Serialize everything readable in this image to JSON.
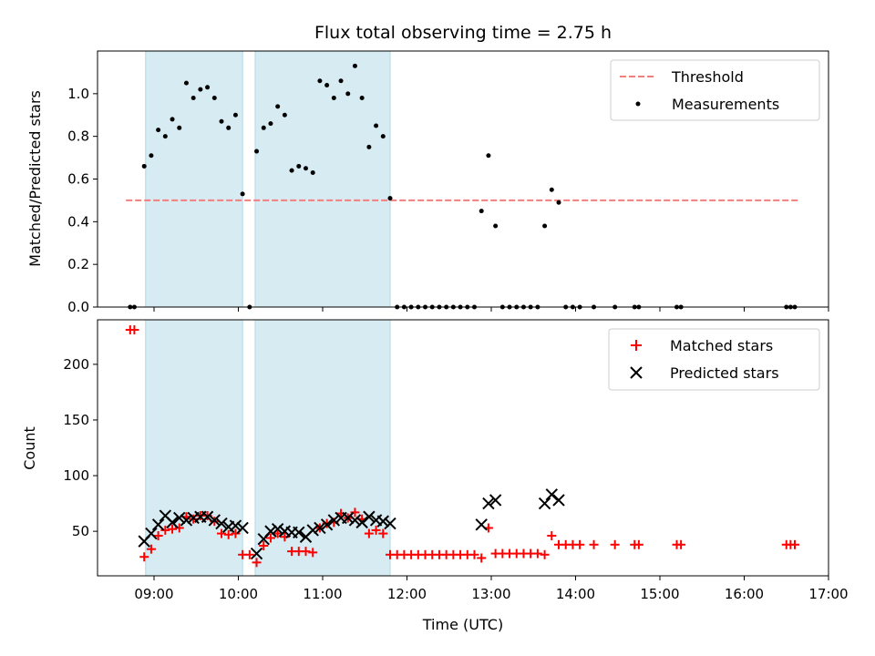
{
  "chart_data": [
    {
      "type": "scatter",
      "title": "Flux total observing time = 2.75 h",
      "xlabel": "",
      "ylabel": "Matched/Predicted stars",
      "xlim": [
        "08:25",
        "17:00"
      ],
      "ylim": [
        0,
        1.2
      ],
      "yticks": [
        0.0,
        0.2,
        0.4,
        0.6,
        0.8,
        1.0
      ],
      "grid": false,
      "legend_position": "top-right",
      "shaded_intervals": [
        [
          "08:54",
          "10:03"
        ],
        [
          "10:12",
          "11:48"
        ]
      ],
      "shade_color": "#add8e6",
      "threshold": {
        "name": "Threshold",
        "y": 0.5,
        "x_range": [
          "08:40",
          "16:40"
        ],
        "color": "#f08080",
        "style": "dashed"
      },
      "series": [
        {
          "name": "Measurements",
          "color": "#000000",
          "marker": "dot",
          "points": [
            [
              "08:43",
              0.0
            ],
            [
              "08:46",
              0.0
            ],
            [
              "08:53",
              0.66
            ],
            [
              "08:58",
              0.71
            ],
            [
              "09:03",
              0.83
            ],
            [
              "09:08",
              0.8
            ],
            [
              "09:13",
              0.88
            ],
            [
              "09:18",
              0.84
            ],
            [
              "09:23",
              1.05
            ],
            [
              "09:28",
              0.98
            ],
            [
              "09:33",
              1.02
            ],
            [
              "09:38",
              1.03
            ],
            [
              "09:43",
              0.98
            ],
            [
              "09:48",
              0.87
            ],
            [
              "09:53",
              0.84
            ],
            [
              "09:58",
              0.9
            ],
            [
              "10:03",
              0.53
            ],
            [
              "10:08",
              0.0
            ],
            [
              "10:13",
              0.73
            ],
            [
              "10:18",
              0.84
            ],
            [
              "10:23",
              0.86
            ],
            [
              "10:28",
              0.94
            ],
            [
              "10:33",
              0.9
            ],
            [
              "10:38",
              0.64
            ],
            [
              "10:43",
              0.66
            ],
            [
              "10:48",
              0.65
            ],
            [
              "10:53",
              0.63
            ],
            [
              "10:58",
              1.06
            ],
            [
              "11:03",
              1.04
            ],
            [
              "11:08",
              0.98
            ],
            [
              "11:13",
              1.06
            ],
            [
              "11:18",
              1.0
            ],
            [
              "11:23",
              1.13
            ],
            [
              "11:28",
              0.98
            ],
            [
              "11:33",
              0.75
            ],
            [
              "11:38",
              0.85
            ],
            [
              "11:43",
              0.8
            ],
            [
              "11:48",
              0.51
            ],
            [
              "11:53",
              0.0
            ],
            [
              "11:58",
              0.0
            ],
            [
              "12:03",
              0.0
            ],
            [
              "12:08",
              0.0
            ],
            [
              "12:13",
              0.0
            ],
            [
              "12:18",
              0.0
            ],
            [
              "12:23",
              0.0
            ],
            [
              "12:28",
              0.0
            ],
            [
              "12:33",
              0.0
            ],
            [
              "12:38",
              0.0
            ],
            [
              "12:43",
              0.0
            ],
            [
              "12:48",
              0.0
            ],
            [
              "12:53",
              0.45
            ],
            [
              "12:58",
              0.71
            ],
            [
              "13:03",
              0.38
            ],
            [
              "13:08",
              0.0
            ],
            [
              "13:13",
              0.0
            ],
            [
              "13:18",
              0.0
            ],
            [
              "13:23",
              0.0
            ],
            [
              "13:28",
              0.0
            ],
            [
              "13:33",
              0.0
            ],
            [
              "13:38",
              0.38
            ],
            [
              "13:43",
              0.55
            ],
            [
              "13:48",
              0.49
            ],
            [
              "13:53",
              0.0
            ],
            [
              "13:58",
              0.0
            ],
            [
              "14:03",
              0.0
            ],
            [
              "14:13",
              0.0
            ],
            [
              "14:28",
              0.0
            ],
            [
              "14:42",
              0.0
            ],
            [
              "14:45",
              0.0
            ],
            [
              "15:12",
              0.0
            ],
            [
              "15:15",
              0.0
            ],
            [
              "16:30",
              0.0
            ],
            [
              "16:33",
              0.0
            ],
            [
              "16:36",
              0.0
            ]
          ]
        }
      ]
    },
    {
      "type": "scatter",
      "title": "",
      "xlabel": "Time (UTC)",
      "ylabel": "Count",
      "xlim": [
        "08:25",
        "17:00"
      ],
      "ylim": [
        10,
        240
      ],
      "yticks": [
        50,
        100,
        150,
        200
      ],
      "xticks": [
        "09:00",
        "10:00",
        "11:00",
        "12:00",
        "13:00",
        "14:00",
        "15:00",
        "16:00",
        "17:00"
      ],
      "grid": false,
      "legend_position": "top-right",
      "shaded_intervals": [
        [
          "08:54",
          "10:03"
        ],
        [
          "10:12",
          "11:48"
        ]
      ],
      "shade_color": "#add8e6",
      "series": [
        {
          "name": "Matched stars",
          "color": "#ff0000",
          "marker": "plus",
          "points": [
            [
              "08:43",
              231
            ],
            [
              "08:46",
              231
            ],
            [
              "08:53",
              27
            ],
            [
              "08:58",
              34
            ],
            [
              "09:03",
              46
            ],
            [
              "09:08",
              51
            ],
            [
              "09:13",
              52
            ],
            [
              "09:18",
              53
            ],
            [
              "09:23",
              63
            ],
            [
              "09:28",
              61
            ],
            [
              "09:33",
              64
            ],
            [
              "09:38",
              64
            ],
            [
              "09:43",
              59
            ],
            [
              "09:48",
              48
            ],
            [
              "09:53",
              47
            ],
            [
              "09:58",
              48
            ],
            [
              "10:03",
              29
            ],
            [
              "10:08",
              29
            ],
            [
              "10:13",
              22
            ],
            [
              "10:18",
              37
            ],
            [
              "10:23",
              44
            ],
            [
              "10:28",
              48
            ],
            [
              "10:33",
              45
            ],
            [
              "10:38",
              32
            ],
            [
              "10:43",
              32
            ],
            [
              "10:48",
              32
            ],
            [
              "10:53",
              31
            ],
            [
              "10:58",
              53
            ],
            [
              "11:03",
              57
            ],
            [
              "11:08",
              58
            ],
            [
              "11:13",
              66
            ],
            [
              "11:18",
              62
            ],
            [
              "11:23",
              67
            ],
            [
              "11:28",
              61
            ],
            [
              "11:33",
              48
            ],
            [
              "11:38",
              51
            ],
            [
              "11:43",
              48
            ],
            [
              "11:48",
              29
            ],
            [
              "11:53",
              29
            ],
            [
              "11:58",
              29
            ],
            [
              "12:03",
              29
            ],
            [
              "12:08",
              29
            ],
            [
              "12:13",
              29
            ],
            [
              "12:18",
              29
            ],
            [
              "12:23",
              29
            ],
            [
              "12:28",
              29
            ],
            [
              "12:33",
              29
            ],
            [
              "12:38",
              29
            ],
            [
              "12:43",
              29
            ],
            [
              "12:48",
              29
            ],
            [
              "12:53",
              26
            ],
            [
              "12:58",
              53
            ],
            [
              "13:03",
              30
            ],
            [
              "13:08",
              30
            ],
            [
              "13:13",
              30
            ],
            [
              "13:18",
              30
            ],
            [
              "13:23",
              30
            ],
            [
              "13:28",
              30
            ],
            [
              "13:33",
              30
            ],
            [
              "13:38",
              29
            ],
            [
              "13:43",
              46
            ],
            [
              "13:48",
              38
            ],
            [
              "13:53",
              38
            ],
            [
              "13:58",
              38
            ],
            [
              "14:03",
              38
            ],
            [
              "14:13",
              38
            ],
            [
              "14:28",
              38
            ],
            [
              "14:42",
              38
            ],
            [
              "14:45",
              38
            ],
            [
              "15:12",
              38
            ],
            [
              "15:15",
              38
            ],
            [
              "16:30",
              38
            ],
            [
              "16:33",
              38
            ],
            [
              "16:36",
              38
            ]
          ]
        },
        {
          "name": "Predicted stars",
          "color": "#000000",
          "marker": "x",
          "points": [
            [
              "08:53",
              41
            ],
            [
              "08:58",
              48
            ],
            [
              "09:03",
              56
            ],
            [
              "09:08",
              64
            ],
            [
              "09:13",
              58
            ],
            [
              "09:18",
              62
            ],
            [
              "09:23",
              60
            ],
            [
              "09:28",
              62
            ],
            [
              "09:33",
              63
            ],
            [
              "09:38",
              63
            ],
            [
              "09:43",
              60
            ],
            [
              "09:48",
              57
            ],
            [
              "09:53",
              54
            ],
            [
              "09:58",
              55
            ],
            [
              "10:03",
              53
            ],
            [
              "10:13",
              30
            ],
            [
              "10:18",
              43
            ],
            [
              "10:23",
              50
            ],
            [
              "10:28",
              52
            ],
            [
              "10:33",
              50
            ],
            [
              "10:38",
              49
            ],
            [
              "10:43",
              49
            ],
            [
              "10:48",
              45
            ],
            [
              "10:53",
              51
            ],
            [
              "10:58",
              53
            ],
            [
              "11:03",
              56
            ],
            [
              "11:08",
              60
            ],
            [
              "11:13",
              62
            ],
            [
              "11:18",
              62
            ],
            [
              "11:23",
              60
            ],
            [
              "11:28",
              58
            ],
            [
              "11:33",
              63
            ],
            [
              "11:38",
              60
            ],
            [
              "11:43",
              59
            ],
            [
              "11:48",
              57
            ],
            [
              "12:53",
              56
            ],
            [
              "12:58",
              75
            ],
            [
              "13:03",
              78
            ],
            [
              "13:38",
              75
            ],
            [
              "13:43",
              83
            ],
            [
              "13:48",
              78
            ]
          ]
        }
      ]
    }
  ]
}
